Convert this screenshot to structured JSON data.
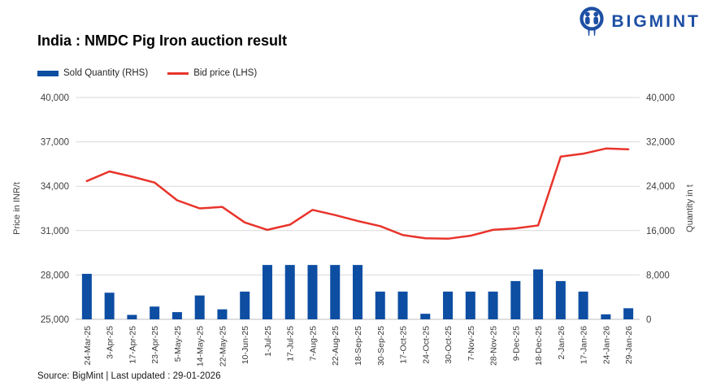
{
  "logo": {
    "text": "BIGMINT",
    "color": "#1d4fa3"
  },
  "title": "India : NMDC Pig Iron auction result",
  "legend": [
    {
      "label": "Sold Quantity (RHS)",
      "type": "bar",
      "color": "#0d4ea3"
    },
    {
      "label": "Bid price (LHS)",
      "type": "line",
      "color": "#e8342b"
    }
  ],
  "source_note": "Source: BigMint | Last updated : 29-01-2026",
  "chart_data": {
    "type": "combo",
    "categories": [
      "24-Mar-25",
      "3-Apr-25",
      "17-Apr-25",
      "23-Apr-25",
      "5-May-25",
      "14-May-25",
      "22-May-25",
      "10-Jun-25",
      "1-Jul-25",
      "17-Jul-25",
      "7-Aug-25",
      "22-Aug-25",
      "18-Sep-25",
      "30-Sep-25",
      "17-Oct-25",
      "24-Oct-25",
      "30-Oct-25",
      "7-Nov-25",
      "28-Nov-25",
      "9-Dec-25",
      "18-Dec-25",
      "2-Jan-26",
      "17-Jan-26",
      "24-Jan-26",
      "29-Jan-26"
    ],
    "series": [
      {
        "name": "Sold Quantity (RHS)",
        "type": "bar",
        "axis": "right",
        "color": "#0d4ea3",
        "values": [
          8200,
          4800,
          800,
          2300,
          1300,
          4300,
          1800,
          5000,
          9800,
          9800,
          9800,
          9800,
          9800,
          5000,
          5000,
          1000,
          5000,
          5000,
          5000,
          6900,
          9000,
          6900,
          5000,
          900,
          2000
        ]
      },
      {
        "name": "Bid price (LHS)",
        "type": "line",
        "axis": "left",
        "color": "#e8342b",
        "values": [
          34350,
          35000,
          34650,
          34250,
          33050,
          32500,
          32600,
          31550,
          31050,
          31400,
          32400,
          32050,
          31650,
          31300,
          30700,
          30480,
          30450,
          30650,
          31050,
          31150,
          31350,
          36000,
          36200,
          36550,
          36500
        ]
      }
    ],
    "left_axis": {
      "title": "Price in INR/t",
      "min": 25000,
      "max": 40000,
      "step": 3000
    },
    "right_axis": {
      "title": "Quantity in t",
      "min": 0,
      "max": 40000,
      "step": 8000
    },
    "grid": true,
    "gridline_color": "#d9d9d9",
    "axisline_color": "#bfbfbf",
    "legend_position": "top-left"
  }
}
